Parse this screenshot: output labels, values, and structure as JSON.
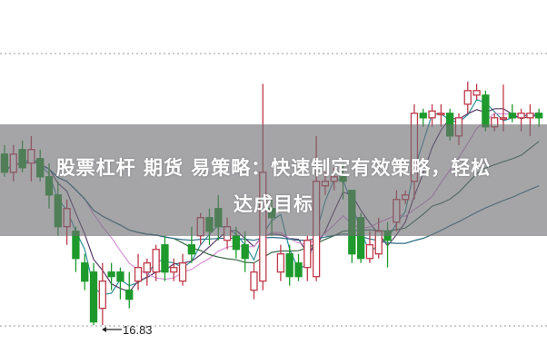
{
  "banner": {
    "line1": "股票杠杆 期货 易策略：快速制定有效策略，轻松",
    "line2": "达成目标"
  },
  "chart_data": {
    "type": "candlestick",
    "ohlc_format": [
      "open",
      "high",
      "low",
      "close"
    ],
    "ylim": [
      16.83,
      20.42
    ],
    "grid": "dotted horizontal top and bottom",
    "low_annotation": "16.83",
    "colors": {
      "up": "#c0384a",
      "down": "#1e9a2c",
      "ma": [
        "#2f8f9a",
        "#5a3a6a",
        "#d890d8",
        "#3a6a4a",
        "#2e6e86"
      ]
    },
    "candles": [
      [
        19.09,
        19.21,
        18.79,
        18.85
      ],
      [
        18.85,
        19.21,
        18.73,
        19.09
      ],
      [
        19.15,
        19.27,
        18.85,
        18.91
      ],
      [
        18.97,
        19.33,
        18.73,
        19.15
      ],
      [
        19.03,
        19.15,
        18.73,
        18.79
      ],
      [
        18.79,
        18.97,
        18.37,
        18.55
      ],
      [
        18.55,
        18.73,
        18.01,
        18.13
      ],
      [
        18.13,
        18.49,
        17.89,
        18.37
      ],
      [
        18.07,
        18.13,
        17.53,
        17.71
      ],
      [
        17.65,
        17.77,
        17.29,
        17.41
      ],
      [
        17.53,
        17.65,
        16.83,
        16.87
      ],
      [
        17.05,
        17.65,
        16.83,
        17.41
      ],
      [
        17.53,
        17.65,
        17.29,
        17.47
      ],
      [
        17.53,
        17.59,
        17.17,
        17.41
      ],
      [
        17.29,
        17.53,
        17.05,
        17.17
      ],
      [
        17.41,
        17.77,
        17.29,
        17.59
      ],
      [
        17.53,
        17.71,
        17.35,
        17.65
      ],
      [
        17.53,
        17.89,
        17.41,
        17.83
      ],
      [
        17.89,
        18.01,
        17.41,
        17.53
      ],
      [
        17.53,
        17.71,
        17.41,
        17.59
      ],
      [
        17.41,
        17.77,
        17.35,
        17.65
      ],
      [
        17.89,
        18.13,
        17.65,
        17.77
      ],
      [
        18.01,
        18.31,
        17.89,
        18.25
      ],
      [
        18.25,
        18.37,
        17.89,
        18.07
      ],
      [
        18.37,
        18.55,
        17.95,
        18.13
      ],
      [
        17.95,
        18.25,
        17.83,
        18.13
      ],
      [
        18.01,
        18.13,
        17.71,
        17.83
      ],
      [
        17.89,
        18.07,
        17.53,
        17.71
      ],
      [
        17.29,
        17.65,
        17.17,
        17.53
      ],
      [
        17.41,
        20.02,
        17.29,
        18.85
      ],
      [
        18.37,
        18.49,
        18.01,
        18.25
      ],
      [
        17.53,
        17.89,
        17.41,
        17.77
      ],
      [
        17.77,
        17.89,
        17.35,
        17.47
      ],
      [
        17.65,
        17.77,
        17.41,
        17.47
      ],
      [
        17.59,
        18.01,
        17.41,
        17.95
      ],
      [
        17.47,
        19.33,
        17.41,
        18.73
      ],
      [
        18.67,
        18.85,
        18.55,
        18.73
      ],
      [
        18.73,
        18.91,
        18.61,
        18.79
      ],
      [
        18.79,
        18.97,
        18.49,
        18.73
      ],
      [
        18.61,
        18.61,
        17.65,
        17.77
      ],
      [
        18.25,
        18.31,
        17.65,
        17.71
      ],
      [
        17.71,
        18.07,
        17.65,
        17.89
      ],
      [
        17.77,
        18.25,
        17.71,
        18.07
      ],
      [
        18.07,
        18.19,
        17.59,
        17.95
      ],
      [
        18.19,
        18.61,
        18.07,
        18.49
      ],
      [
        18.49,
        18.61,
        18.43,
        18.55
      ],
      [
        18.73,
        19.75,
        18.49,
        19.63
      ],
      [
        19.63,
        19.69,
        19.45,
        19.57
      ],
      [
        19.57,
        19.75,
        19.45,
        19.66
      ],
      [
        19.63,
        19.75,
        19.45,
        19.63
      ],
      [
        19.63,
        19.69,
        19.27,
        19.33
      ],
      [
        19.33,
        19.63,
        19.21,
        19.57
      ],
      [
        19.75,
        20.05,
        19.63,
        19.93
      ],
      [
        19.87,
        20.02,
        19.81,
        19.93
      ],
      [
        19.87,
        19.93,
        19.39,
        19.45
      ],
      [
        19.45,
        19.63,
        19.39,
        19.57
      ],
      [
        19.57,
        20.01,
        19.39,
        19.57
      ],
      [
        19.63,
        19.75,
        19.51,
        19.57
      ],
      [
        19.57,
        19.69,
        19.39,
        19.63
      ],
      [
        19.57,
        19.75,
        19.33,
        19.63
      ],
      [
        19.63,
        19.69,
        19.45,
        19.57
      ]
    ]
  }
}
